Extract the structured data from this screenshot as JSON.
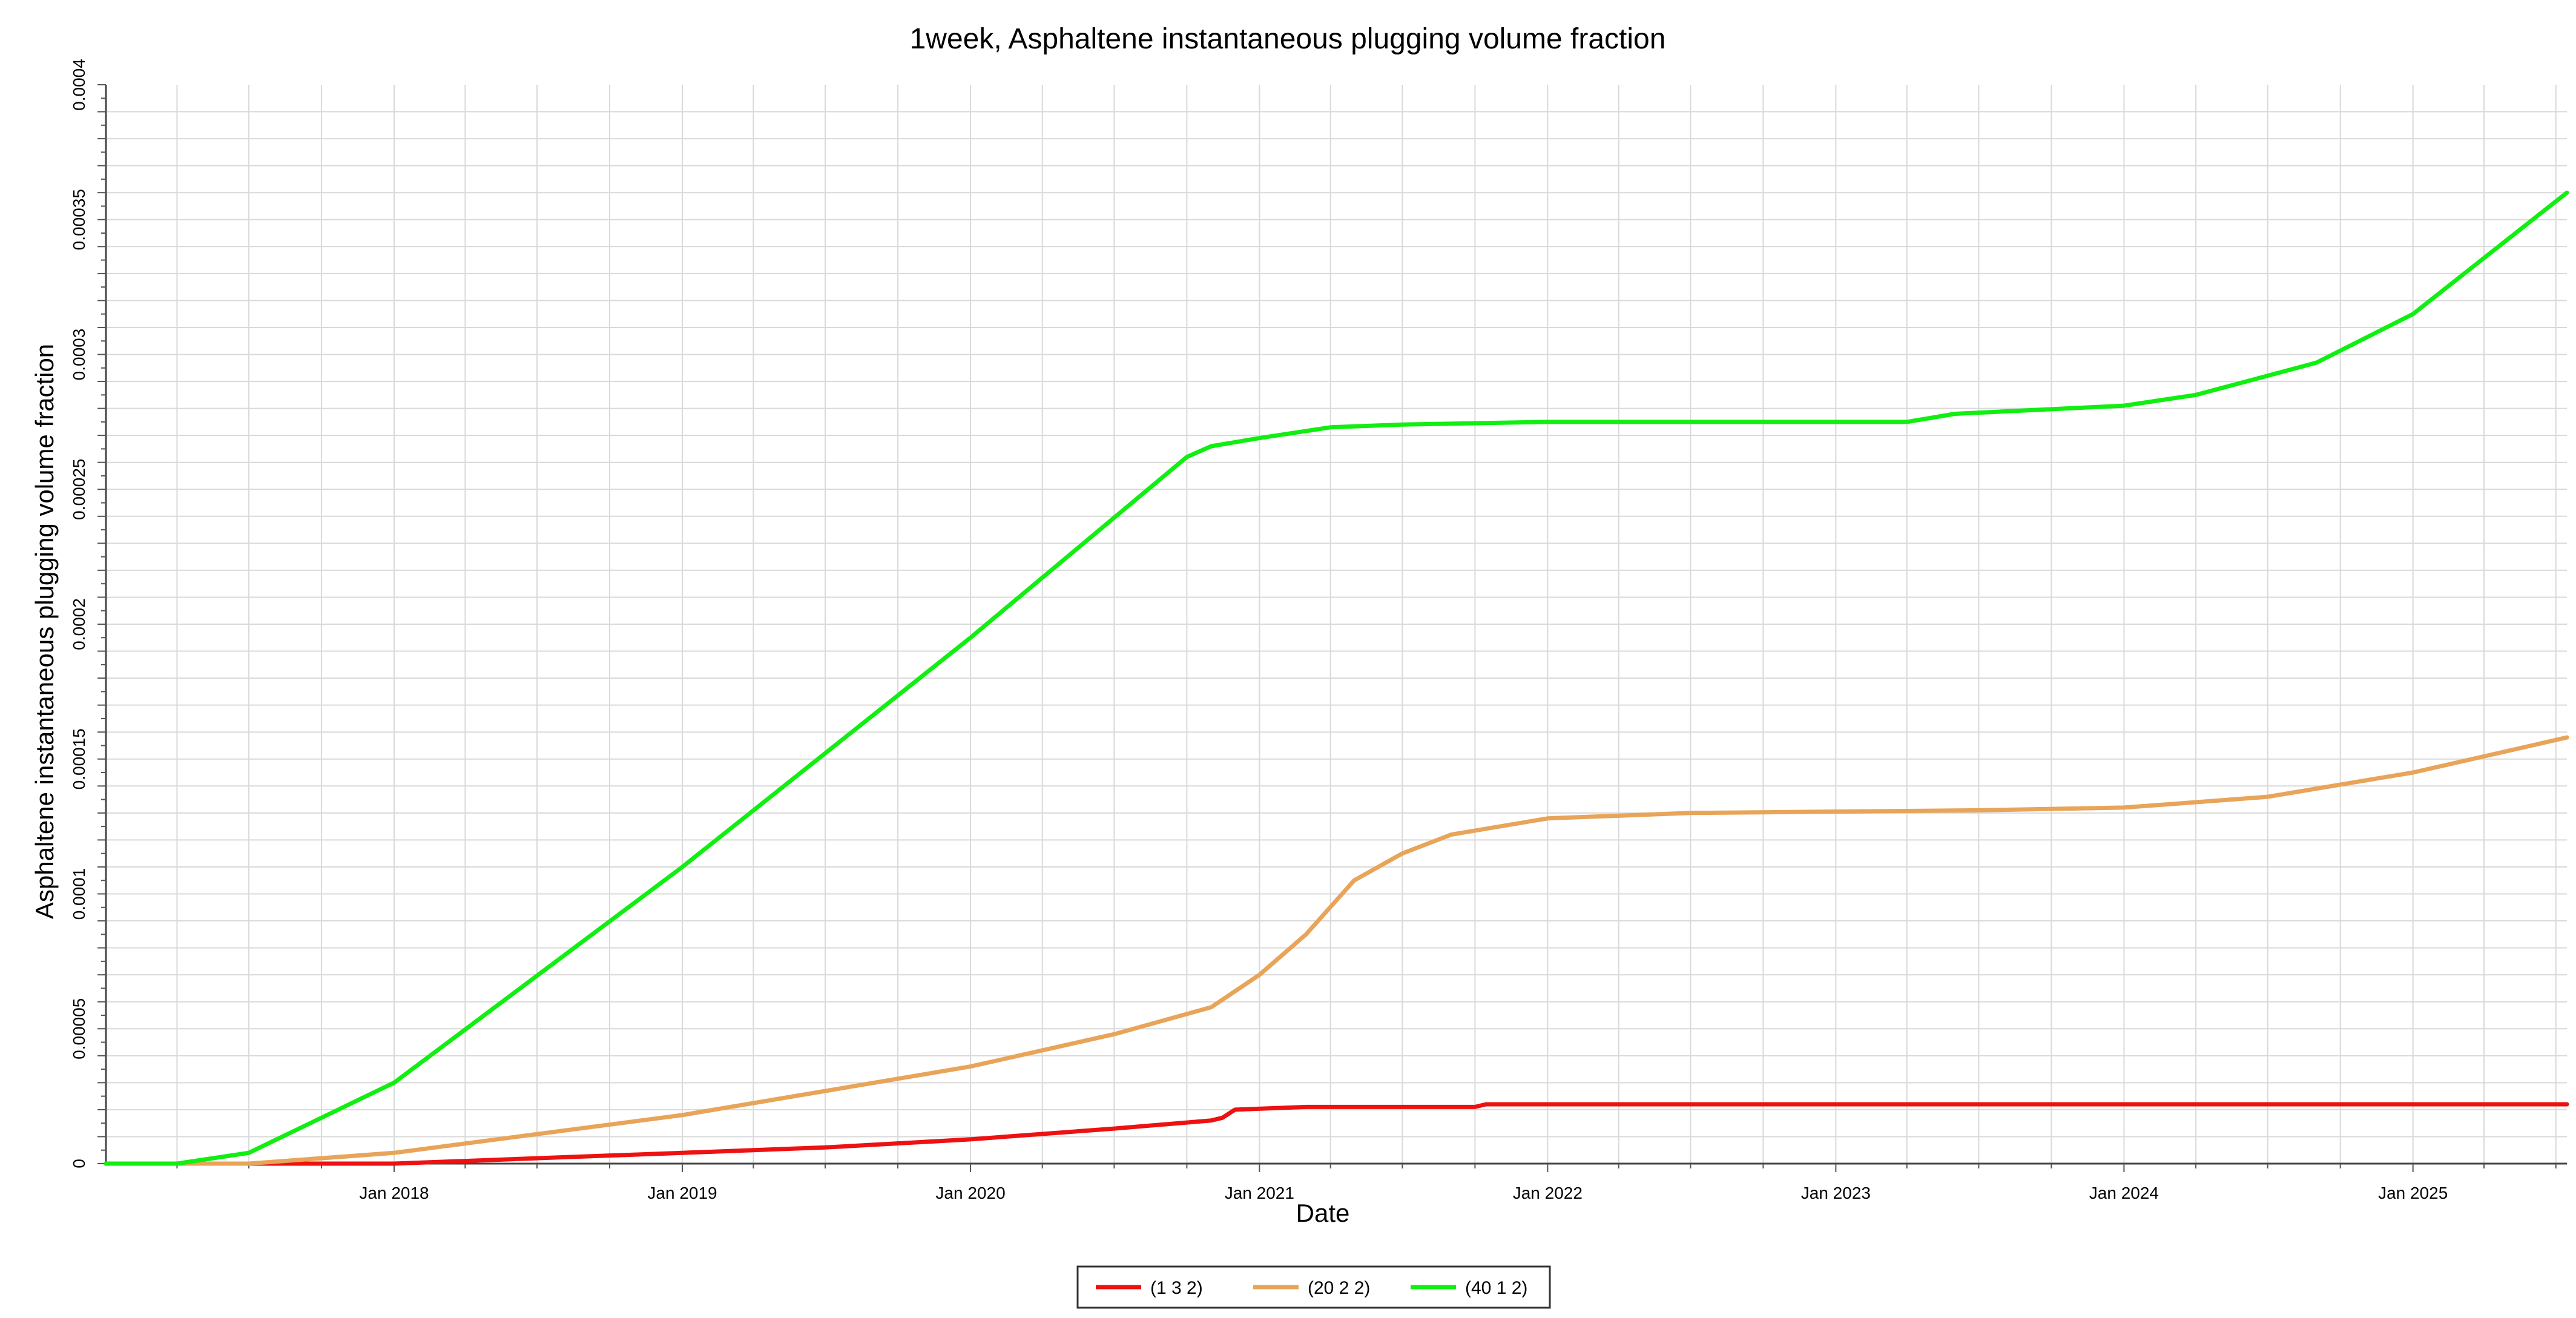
{
  "chart_data": {
    "type": "line",
    "title": "1week, Asphaltene instantaneous plugging volume fraction",
    "xlabel": "Date",
    "ylabel": "Asphaltene instantaneous plugging volume fraction",
    "xlim": [
      "2017-01-01",
      "2025-07-15"
    ],
    "ylim": [
      0,
      0.0004
    ],
    "x_tick_labels": [
      {
        "date": "2018-01-01",
        "label": "Jan 2018"
      },
      {
        "date": "2019-01-01",
        "label": "Jan 2019"
      },
      {
        "date": "2020-01-01",
        "label": "Jan 2020"
      },
      {
        "date": "2021-01-01",
        "label": "Jan 2021"
      },
      {
        "date": "2022-01-01",
        "label": "Jan 2022"
      },
      {
        "date": "2023-01-01",
        "label": "Jan 2023"
      },
      {
        "date": "2024-01-01",
        "label": "Jan 2024"
      },
      {
        "date": "2025-01-01",
        "label": "Jan 2025"
      }
    ],
    "y_ticks": [
      {
        "value": 0,
        "label": "0"
      },
      {
        "value": 5e-05,
        "label": "0.00005"
      },
      {
        "value": 0.0001,
        "label": "0.0001"
      },
      {
        "value": 0.00015,
        "label": "0.00015"
      },
      {
        "value": 0.0002,
        "label": "0.0002"
      },
      {
        "value": 0.00025,
        "label": "0.00025"
      },
      {
        "value": 0.0003,
        "label": "0.0003"
      },
      {
        "value": 0.00035,
        "label": "0.00035"
      },
      {
        "value": 0.0004,
        "label": "0.0004"
      }
    ],
    "grid": true,
    "legend_position": "bottom-center",
    "series": [
      {
        "name": "(1 3 2)",
        "color": "#ee1111",
        "points": [
          [
            "2017-01-01",
            0
          ],
          [
            "2018-01-01",
            0
          ],
          [
            "2018-07-01",
            2e-06
          ],
          [
            "2019-01-01",
            4e-06
          ],
          [
            "2019-07-01",
            6e-06
          ],
          [
            "2020-01-01",
            9e-06
          ],
          [
            "2020-07-01",
            1.3e-05
          ],
          [
            "2020-11-01",
            1.6e-05
          ],
          [
            "2020-11-15",
            1.7e-05
          ],
          [
            "2020-12-01",
            2e-05
          ],
          [
            "2021-03-01",
            2.1e-05
          ],
          [
            "2021-10-01",
            2.1e-05
          ],
          [
            "2021-10-15",
            2.2e-05
          ],
          [
            "2025-07-15",
            2.2e-05
          ]
        ]
      },
      {
        "name": "(20 2 2)",
        "color": "#e8a458",
        "points": [
          [
            "2017-01-01",
            0
          ],
          [
            "2017-07-01",
            0
          ],
          [
            "2018-01-01",
            4e-06
          ],
          [
            "2019-01-01",
            1.8e-05
          ],
          [
            "2020-01-01",
            3.6e-05
          ],
          [
            "2020-07-01",
            4.8e-05
          ],
          [
            "2020-11-01",
            5.8e-05
          ],
          [
            "2021-01-01",
            7e-05
          ],
          [
            "2021-03-01",
            8.5e-05
          ],
          [
            "2021-05-01",
            0.000105
          ],
          [
            "2021-07-01",
            0.000115
          ],
          [
            "2021-09-01",
            0.000122
          ],
          [
            "2022-01-01",
            0.000128
          ],
          [
            "2022-07-01",
            0.00013
          ],
          [
            "2023-07-01",
            0.000131
          ],
          [
            "2024-01-01",
            0.000132
          ],
          [
            "2024-07-01",
            0.000136
          ],
          [
            "2025-01-01",
            0.000145
          ],
          [
            "2025-07-15",
            0.000158
          ]
        ]
      },
      {
        "name": "(40 1 2)",
        "color": "#11ee11",
        "points": [
          [
            "2017-01-01",
            0
          ],
          [
            "2017-04-01",
            0
          ],
          [
            "2017-07-01",
            4e-06
          ],
          [
            "2018-01-01",
            3e-05
          ],
          [
            "2019-01-01",
            0.00011
          ],
          [
            "2020-01-01",
            0.000195
          ],
          [
            "2020-10-01",
            0.000262
          ],
          [
            "2020-11-01",
            0.000266
          ],
          [
            "2021-01-01",
            0.000269
          ],
          [
            "2021-04-01",
            0.000273
          ],
          [
            "2021-07-01",
            0.000274
          ],
          [
            "2022-01-01",
            0.000275
          ],
          [
            "2023-04-01",
            0.000275
          ],
          [
            "2023-06-01",
            0.000278
          ],
          [
            "2024-01-01",
            0.000281
          ],
          [
            "2024-04-01",
            0.000285
          ],
          [
            "2024-09-01",
            0.000297
          ],
          [
            "2025-01-01",
            0.000315
          ],
          [
            "2025-07-15",
            0.00036
          ]
        ]
      }
    ]
  }
}
